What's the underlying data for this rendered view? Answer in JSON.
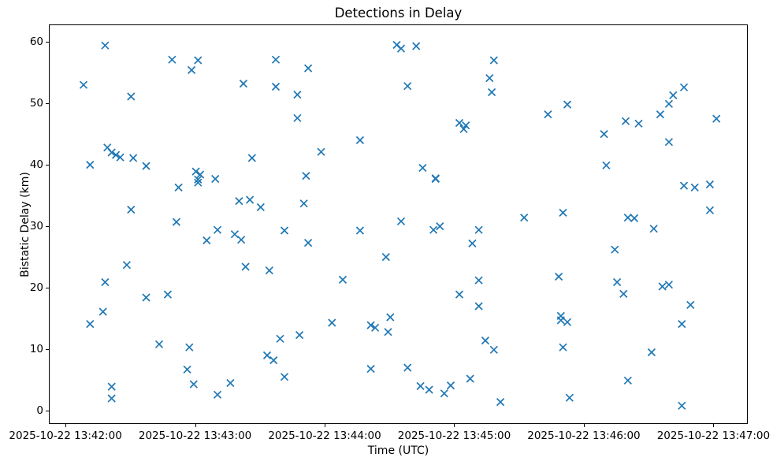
{
  "chart_data": {
    "type": "scatter",
    "title": "Detections in Delay",
    "xlabel": "Time (UTC)",
    "ylabel": "Bistatic Delay (km)",
    "marker": "x",
    "marker_color": "#1f77b4",
    "grid": false,
    "legend": "none",
    "x_tick_labels": [
      "2025-10-22 13:42:00",
      "2025-10-22 13:43:00",
      "2025-10-22 13:44:00",
      "2025-10-22 13:45:00",
      "2025-10-22 13:46:00",
      "2025-10-22 13:47:00"
    ],
    "x_tick_seconds_after_1342": [
      0,
      60,
      120,
      180,
      240,
      300
    ],
    "y_ticks": [
      0,
      10,
      20,
      30,
      40,
      50,
      60
    ],
    "xlim_seconds_after_1342": [
      -7.7,
      315.9
    ],
    "ylim": [
      -2.2,
      62.8
    ],
    "points": [
      [
        "13:42:08",
        53.1
      ],
      [
        "13:42:11",
        40.1
      ],
      [
        "13:42:11",
        14.2
      ],
      [
        "13:42:17",
        16.2
      ],
      [
        "13:42:18",
        59.5
      ],
      [
        "13:42:18",
        21.0
      ],
      [
        "13:42:19",
        42.9
      ],
      [
        "13:42:21",
        42.1
      ],
      [
        "13:42:21",
        4.0
      ],
      [
        "13:42:21",
        2.1
      ],
      [
        "13:42:23",
        41.7
      ],
      [
        "13:42:25",
        41.3
      ],
      [
        "13:42:28",
        23.8
      ],
      [
        "13:42:30",
        51.2
      ],
      [
        "13:42:30",
        32.8
      ],
      [
        "13:42:31",
        41.2
      ],
      [
        "13:42:37",
        39.9
      ],
      [
        "13:42:37",
        18.5
      ],
      [
        "13:42:43",
        10.9
      ],
      [
        "13:42:47",
        19.0
      ],
      [
        "13:42:49",
        57.2
      ],
      [
        "13:42:51",
        30.8
      ],
      [
        "13:42:52",
        36.4
      ],
      [
        "13:42:56",
        6.8
      ],
      [
        "13:42:57",
        10.4
      ],
      [
        "13:42:58",
        55.5
      ],
      [
        "13:42:59",
        4.4
      ],
      [
        "13:43:00",
        39.0
      ],
      [
        "13:43:01",
        57.1
      ],
      [
        "13:43:01",
        37.7
      ],
      [
        "13:43:01",
        37.2
      ],
      [
        "13:43:02",
        38.5
      ],
      [
        "13:43:05",
        27.8
      ],
      [
        "13:43:09",
        37.8
      ],
      [
        "13:43:10",
        29.5
      ],
      [
        "13:43:10",
        2.7
      ],
      [
        "13:43:16",
        4.6
      ],
      [
        "13:43:18",
        28.8
      ],
      [
        "13:43:20",
        34.2
      ],
      [
        "13:43:21",
        27.9
      ],
      [
        "13:43:22",
        53.3
      ],
      [
        "13:43:23",
        23.5
      ],
      [
        "13:43:25",
        34.4
      ],
      [
        "13:43:26",
        41.2
      ],
      [
        "13:43:30",
        33.2
      ],
      [
        "13:43:33",
        9.1
      ],
      [
        "13:43:34",
        22.9
      ],
      [
        "13:43:36",
        8.3
      ],
      [
        "13:43:37",
        57.2
      ],
      [
        "13:43:37",
        52.8
      ],
      [
        "13:43:39",
        11.8
      ],
      [
        "13:43:41",
        29.4
      ],
      [
        "13:43:41",
        5.6
      ],
      [
        "13:43:47",
        51.5
      ],
      [
        "13:43:47",
        47.7
      ],
      [
        "13:43:48",
        12.4
      ],
      [
        "13:43:50",
        33.8
      ],
      [
        "13:43:51",
        38.3
      ],
      [
        "13:43:52",
        55.8
      ],
      [
        "13:43:52",
        27.4
      ],
      [
        "13:43:58",
        42.2
      ],
      [
        "13:44:03",
        14.4
      ],
      [
        "13:44:08",
        21.4
      ],
      [
        "13:44:16",
        44.1
      ],
      [
        "13:44:16",
        29.4
      ],
      [
        "13:44:21",
        14.0
      ],
      [
        "13:44:21",
        6.9
      ],
      [
        "13:44:23",
        13.6
      ],
      [
        "13:44:28",
        25.1
      ],
      [
        "13:44:29",
        12.9
      ],
      [
        "13:44:30",
        15.3
      ],
      [
        "13:44:33",
        59.6
      ],
      [
        "13:44:35",
        59.0
      ],
      [
        "13:44:35",
        30.9
      ],
      [
        "13:44:38",
        52.9
      ],
      [
        "13:44:38",
        7.1
      ],
      [
        "13:44:42",
        59.4
      ],
      [
        "13:44:44",
        4.1
      ],
      [
        "13:44:45",
        39.6
      ],
      [
        "13:44:48",
        3.5
      ],
      [
        "13:44:50",
        29.5
      ],
      [
        "13:44:51",
        37.9
      ],
      [
        "13:44:51",
        37.8
      ],
      [
        "13:44:53",
        30.1
      ],
      [
        "13:44:55",
        2.9
      ],
      [
        "13:44:58",
        4.2
      ],
      [
        "13:45:02",
        46.9
      ],
      [
        "13:45:02",
        19.0
      ],
      [
        "13:45:04",
        45.9
      ],
      [
        "13:45:05",
        46.5
      ],
      [
        "13:45:07",
        5.3
      ],
      [
        "13:45:08",
        27.3
      ],
      [
        "13:45:11",
        29.5
      ],
      [
        "13:45:11",
        21.3
      ],
      [
        "13:45:11",
        17.1
      ],
      [
        "13:45:14",
        11.5
      ],
      [
        "13:45:16",
        54.2
      ],
      [
        "13:45:17",
        51.9
      ],
      [
        "13:45:18",
        57.1
      ],
      [
        "13:45:18",
        10.0
      ],
      [
        "13:45:21",
        1.5
      ],
      [
        "13:45:32",
        31.5
      ],
      [
        "13:45:43",
        48.3
      ],
      [
        "13:45:48",
        21.9
      ],
      [
        "13:45:49",
        15.5
      ],
      [
        "13:45:49",
        14.8
      ],
      [
        "13:45:50",
        32.3
      ],
      [
        "13:45:50",
        10.4
      ],
      [
        "13:45:52",
        49.9
      ],
      [
        "13:45:52",
        14.5
      ],
      [
        "13:45:53",
        2.2
      ],
      [
        "13:46:09",
        45.1
      ],
      [
        "13:46:10",
        40.0
      ],
      [
        "13:46:14",
        26.3
      ],
      [
        "13:46:15",
        21.0
      ],
      [
        "13:46:18",
        19.1
      ],
      [
        "13:46:19",
        47.2
      ],
      [
        "13:46:20",
        31.5
      ],
      [
        "13:46:20",
        5.0
      ],
      [
        "13:46:23",
        31.4
      ],
      [
        "13:46:25",
        46.8
      ],
      [
        "13:46:31",
        9.6
      ],
      [
        "13:46:32",
        29.7
      ],
      [
        "13:46:35",
        48.3
      ],
      [
        "13:46:36",
        20.3
      ],
      [
        "13:46:39",
        50.0
      ],
      [
        "13:46:39",
        43.8
      ],
      [
        "13:46:39",
        20.6
      ],
      [
        "13:46:41",
        51.4
      ],
      [
        "13:46:45",
        14.2
      ],
      [
        "13:46:45",
        0.9
      ],
      [
        "13:46:46",
        52.7
      ],
      [
        "13:46:46",
        36.7
      ],
      [
        "13:46:49",
        17.3
      ],
      [
        "13:46:51",
        36.4
      ],
      [
        "13:46:58",
        36.9
      ],
      [
        "13:46:58",
        32.7
      ],
      [
        "13:47:01",
        47.6
      ]
    ]
  }
}
